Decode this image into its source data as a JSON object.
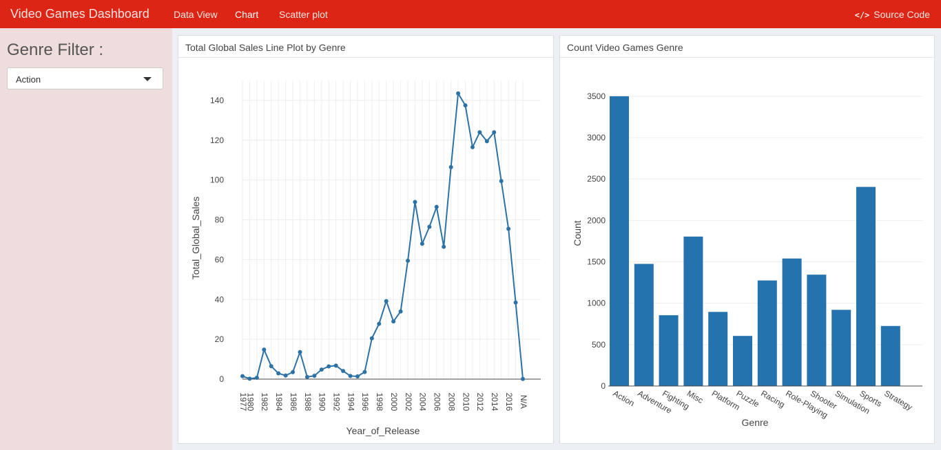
{
  "navbar": {
    "title": "Video Games Dashboard",
    "tabs": [
      {
        "label": "Data View"
      },
      {
        "label": "Chart"
      },
      {
        "label": "Scatter plot"
      }
    ],
    "active_tab": "Chart",
    "source_label": "Source Code",
    "color": "#dd2515"
  },
  "sidebar": {
    "filter_title": "Genre Filter :",
    "selected_genre": "Action"
  },
  "panels": {
    "line_title": "Total Global Sales Line Plot by Genre",
    "bar_title": "Count Video Games Genre"
  },
  "chart_data": [
    {
      "type": "line",
      "color": "#2d72a6",
      "xlabel": "Year_of_Release",
      "ylabel": "Total_Global_Sales",
      "ylim": [
        0,
        150
      ],
      "yticks": [
        0,
        20,
        40,
        60,
        80,
        100,
        120,
        140
      ],
      "categories": [
        "1977",
        "1980",
        "1981",
        "1982",
        "1983",
        "1984",
        "1985",
        "1986",
        "1987",
        "1988",
        "1989",
        "1990",
        "1991",
        "1992",
        "1993",
        "1994",
        "1995",
        "1996",
        "1997",
        "1998",
        "1999",
        "2000",
        "2001",
        "2002",
        "2003",
        "2004",
        "2005",
        "2006",
        "2007",
        "2008",
        "2009",
        "2010",
        "2011",
        "2012",
        "2013",
        "2014",
        "2015",
        "2016",
        "2017",
        "N/A"
      ],
      "shown_labels": [
        "1977",
        "1980",
        "1982",
        "1984",
        "1986",
        "1988",
        "1990",
        "1992",
        "1994",
        "1996",
        "1998",
        "2000",
        "2002",
        "2004",
        "2006",
        "2008",
        "2010",
        "2012",
        "2014",
        "2016",
        "N/A"
      ],
      "values": [
        1.5,
        0.2,
        0.7,
        14.8,
        6.5,
        2.9,
        1.8,
        3.5,
        13.6,
        1.1,
        1.7,
        4.8,
        6.4,
        6.8,
        4.1,
        1.6,
        1.4,
        3.6,
        20.5,
        27.8,
        39.2,
        29.0,
        34.0,
        59.5,
        89.0,
        68.0,
        76.5,
        86.5,
        66.5,
        106.5,
        143.5,
        137.5,
        116.5,
        124.0,
        119.5,
        124.0,
        99.5,
        75.5,
        38.5,
        0.1
      ]
    },
    {
      "type": "bar",
      "color": "#2573ae",
      "xlabel": "Genre",
      "ylabel": "Count",
      "ylim": [
        0,
        3600
      ],
      "yticks": [
        0,
        500,
        1000,
        1500,
        2000,
        2500,
        3000,
        3500
      ],
      "categories": [
        "Action",
        "Adventure",
        "Fighting",
        "Misc",
        "Platform",
        "Puzzle",
        "Racing",
        "Role-Playing",
        "Shooter",
        "Simulation",
        "Sports",
        "Strategy"
      ],
      "values": [
        3500,
        1475,
        855,
        1805,
        895,
        605,
        1275,
        1540,
        1345,
        920,
        2405,
        725
      ]
    }
  ]
}
